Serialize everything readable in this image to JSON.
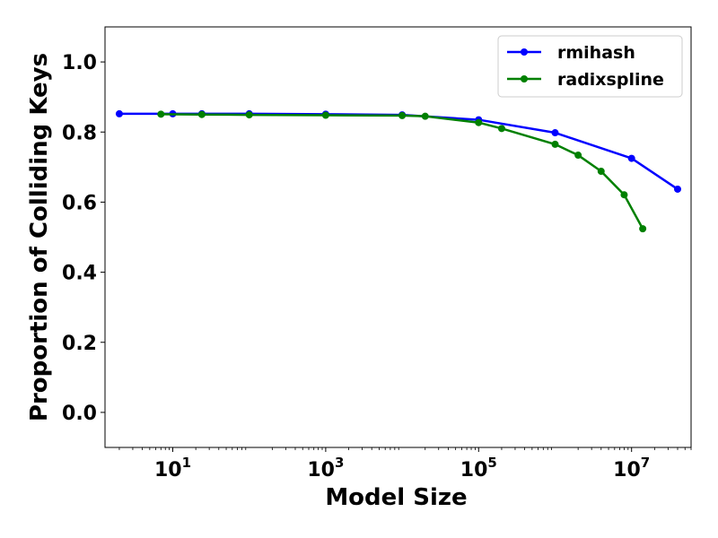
{
  "chart_data": {
    "type": "line",
    "title": "",
    "xlabel": "Model Size",
    "ylabel": "Proportion of Colliding Keys",
    "xscale": "log",
    "xlim": [
      1.3,
      60000000
    ],
    "ylim": [
      -0.1,
      1.1
    ],
    "grid": false,
    "legend_position": "top-right",
    "x_ticks": [
      {
        "value": 10,
        "base": "10",
        "exp": "1"
      },
      {
        "value": 1000,
        "base": "10",
        "exp": "3"
      },
      {
        "value": 100000,
        "base": "10",
        "exp": "5"
      },
      {
        "value": 10000000,
        "base": "10",
        "exp": "7"
      }
    ],
    "y_ticks": [
      {
        "value": 0.0,
        "label": "0.0"
      },
      {
        "value": 0.2,
        "label": "0.2"
      },
      {
        "value": 0.4,
        "label": "0.4"
      },
      {
        "value": 0.6,
        "label": "0.6"
      },
      {
        "value": 0.8,
        "label": "0.8"
      },
      {
        "value": 1.0,
        "label": "1.0"
      }
    ],
    "series": [
      {
        "name": "rmihash",
        "color": "#0000ff",
        "x": [
          2,
          10,
          24,
          100,
          1000,
          10000,
          100000,
          1000000,
          10000000,
          40000000
        ],
        "y": [
          0.852,
          0.852,
          0.852,
          0.852,
          0.851,
          0.849,
          0.835,
          0.798,
          0.725,
          0.637
        ]
      },
      {
        "name": "radixspline",
        "color": "#008000",
        "x": [
          7,
          24,
          100,
          1000,
          10000,
          20000,
          100000,
          200000,
          1000000,
          2000000,
          4000000,
          8000000,
          14000000
        ],
        "y": [
          0.851,
          0.85,
          0.849,
          0.848,
          0.847,
          0.845,
          0.827,
          0.81,
          0.765,
          0.734,
          0.688,
          0.621,
          0.524
        ]
      }
    ]
  }
}
